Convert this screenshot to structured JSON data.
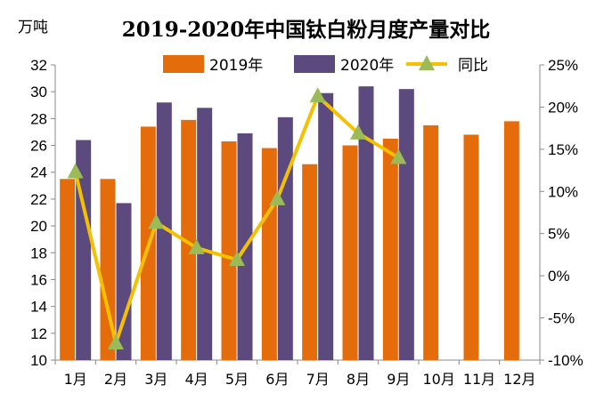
{
  "chart_data": {
    "type": "bar",
    "title": "2019-2020年中国钛白粉月度产量对比",
    "y_unit": "万吨",
    "categories": [
      "1月",
      "2月",
      "3月",
      "4月",
      "5月",
      "6月",
      "7月",
      "8月",
      "9月",
      "10月",
      "11月",
      "12月"
    ],
    "series": [
      {
        "name": "2019年",
        "type": "bar",
        "axis": "left",
        "color": "#e46c0a",
        "values": [
          23.5,
          23.5,
          27.4,
          27.9,
          26.3,
          25.8,
          24.6,
          26.0,
          26.5,
          27.5,
          26.8,
          27.8
        ]
      },
      {
        "name": "2020年",
        "type": "bar",
        "axis": "left",
        "color": "#5c4a7e",
        "values": [
          26.4,
          21.7,
          29.2,
          28.8,
          26.9,
          28.1,
          29.9,
          30.4,
          30.2,
          null,
          null,
          null
        ]
      },
      {
        "name": "同比",
        "type": "line",
        "axis": "right",
        "color": "#f5c000",
        "marker_color": "#9bbb59",
        "values": [
          12.3,
          -8.0,
          6.3,
          3.3,
          1.9,
          9.1,
          21.3,
          16.9,
          14.0,
          null,
          null,
          null
        ]
      }
    ],
    "y_left": {
      "min": 10,
      "max": 32,
      "step": 2,
      "tick_labels": [
        "10",
        "12",
        "14",
        "16",
        "18",
        "20",
        "22",
        "24",
        "26",
        "28",
        "30",
        "32"
      ]
    },
    "y_right": {
      "min": -10,
      "max": 25,
      "step": 5,
      "tick_labels": [
        "-10%",
        "-5%",
        "0%",
        "5%",
        "10%",
        "15%",
        "20%",
        "25%"
      ]
    },
    "legend_position": "top",
    "grid": false
  }
}
